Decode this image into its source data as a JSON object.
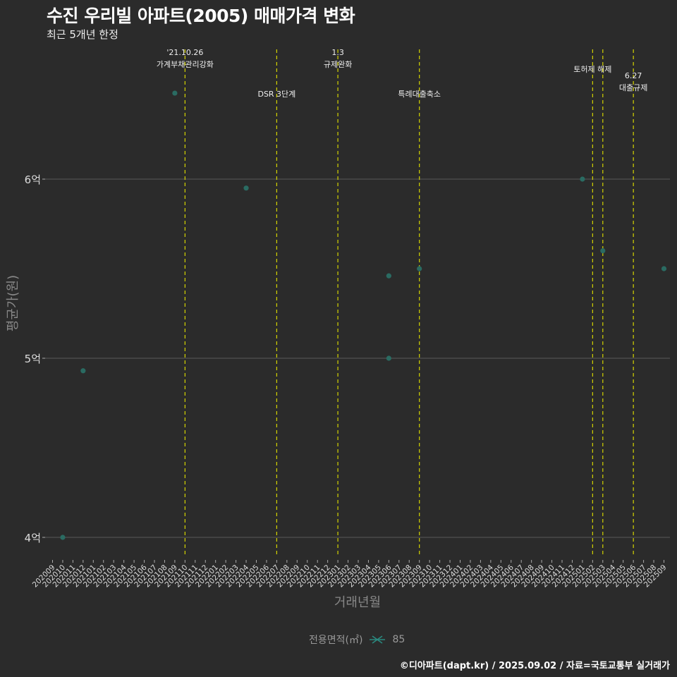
{
  "title": "수진 우리빌 아파트(2005) 매매가격 변화",
  "subtitle": "최근 5개년 한정",
  "caption": "©디아파트(dapt.kr) / 2025.09.02 / 자료=국토교통부 실거래가",
  "legend": {
    "title": "전용면적(㎡)",
    "entries": [
      "85"
    ]
  },
  "chart_data": {
    "type": "scatter",
    "title": "수진 우리빌 아파트(2005) 매매가격 변화",
    "xlabel": "거래년월",
    "ylabel": "평균가(원)",
    "ylim": [
      3.9,
      6.75
    ],
    "y_ticks": [
      {
        "value": 4,
        "label": "4억"
      },
      {
        "value": 5,
        "label": "5억"
      },
      {
        "value": 6,
        "label": "6억"
      }
    ],
    "grid": "horizontal major",
    "legend_position": "bottom",
    "x_categories": [
      "202009",
      "202010",
      "202011",
      "202012",
      "202101",
      "202102",
      "202103",
      "202104",
      "202105",
      "202106",
      "202107",
      "202108",
      "202109",
      "202110",
      "202111",
      "202112",
      "202201",
      "202202",
      "202203",
      "202204",
      "202205",
      "202206",
      "202207",
      "202208",
      "202209",
      "202210",
      "202211",
      "202212",
      "202301",
      "202302",
      "202303",
      "202304",
      "202305",
      "202306",
      "202307",
      "202308",
      "202309",
      "202310",
      "202311",
      "202312",
      "202401",
      "202402",
      "202403",
      "202404",
      "202405",
      "202406",
      "202407",
      "202408",
      "202409",
      "202410",
      "202411",
      "202412",
      "202501",
      "202502",
      "202503",
      "202504",
      "202505",
      "202506",
      "202507",
      "202508",
      "202509"
    ],
    "series": [
      {
        "name": "85",
        "color": "#2a6b62",
        "points": [
          {
            "x": "202010",
            "y": 4.0
          },
          {
            "x": "202012",
            "y": 4.93
          },
          {
            "x": "202109",
            "y": 6.48
          },
          {
            "x": "202204",
            "y": 5.95
          },
          {
            "x": "202306",
            "y": 5.46
          },
          {
            "x": "202306",
            "y": 5.0
          },
          {
            "x": "202309",
            "y": 5.5
          },
          {
            "x": "202501",
            "y": 6.0
          },
          {
            "x": "202503",
            "y": 5.6
          },
          {
            "x": "202509",
            "y": 5.5
          }
        ]
      }
    ],
    "events": [
      {
        "x": "202110",
        "lines": [
          "'21.10.26",
          "가계부채관리강화"
        ],
        "row": 0
      },
      {
        "x": "202207",
        "lines": [
          "DSR 3단계"
        ],
        "row": 2
      },
      {
        "x": "202301",
        "lines": [
          "1.3",
          "규제완화"
        ],
        "row": 0
      },
      {
        "x": "202309",
        "lines": [
          "특례대출축소"
        ],
        "row": 2
      },
      {
        "x": "202502",
        "lines": [
          "토허제 해제"
        ],
        "row": 1
      },
      {
        "x": "202503",
        "lines": [],
        "row": 1
      },
      {
        "x": "202506",
        "lines": [
          "6.27",
          "대출규제"
        ],
        "row": 3
      }
    ],
    "event_line_color": "#d4d400"
  }
}
